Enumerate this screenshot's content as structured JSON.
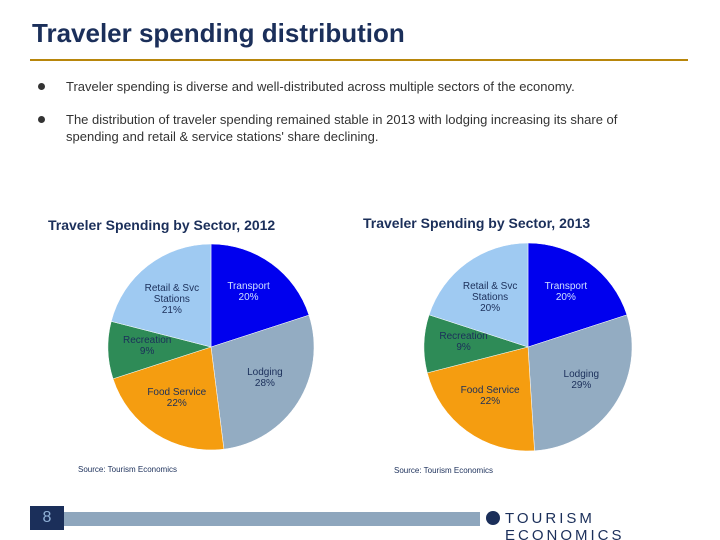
{
  "header": {
    "title": "Traveler spending distribution"
  },
  "bullets": [
    "Traveler spending is diverse and well-distributed across multiple sectors of the economy.",
    "The distribution of traveler spending remained stable in 2013 with lodging increasing its share of spending and retail & service stations' share declining."
  ],
  "chart_data": [
    {
      "type": "pie",
      "title": "Traveler Spending by Sector, 2012",
      "source": "Source: Tourism Economics",
      "categories": [
        "Transport",
        "Lodging",
        "Food Service",
        "Recreation",
        "Retail & Svc Stations"
      ],
      "values": [
        20,
        28,
        22,
        9,
        21
      ],
      "value_labels": [
        "20%",
        "28%",
        "22%",
        "9%",
        "21%"
      ],
      "colors": [
        "#0000ee",
        "#93acc2",
        "#f59d10",
        "#2e8b57",
        "#9fcaf2"
      ]
    },
    {
      "type": "pie",
      "title": "Traveler Spending by Sector, 2013",
      "source": "Source: Tourism Economics",
      "categories": [
        "Transport",
        "Lodging",
        "Food Service",
        "Recreation",
        "Retail & Svc Stations"
      ],
      "values": [
        20,
        29,
        22,
        9,
        20
      ],
      "value_labels": [
        "20%",
        "29%",
        "22%",
        "9%",
        "20%"
      ],
      "colors": [
        "#0000ee",
        "#93acc2",
        "#f59d10",
        "#2e8b57",
        "#9fcaf2"
      ]
    }
  ],
  "footer": {
    "page": "8",
    "logo": "TOURISM ECONOMICS"
  }
}
